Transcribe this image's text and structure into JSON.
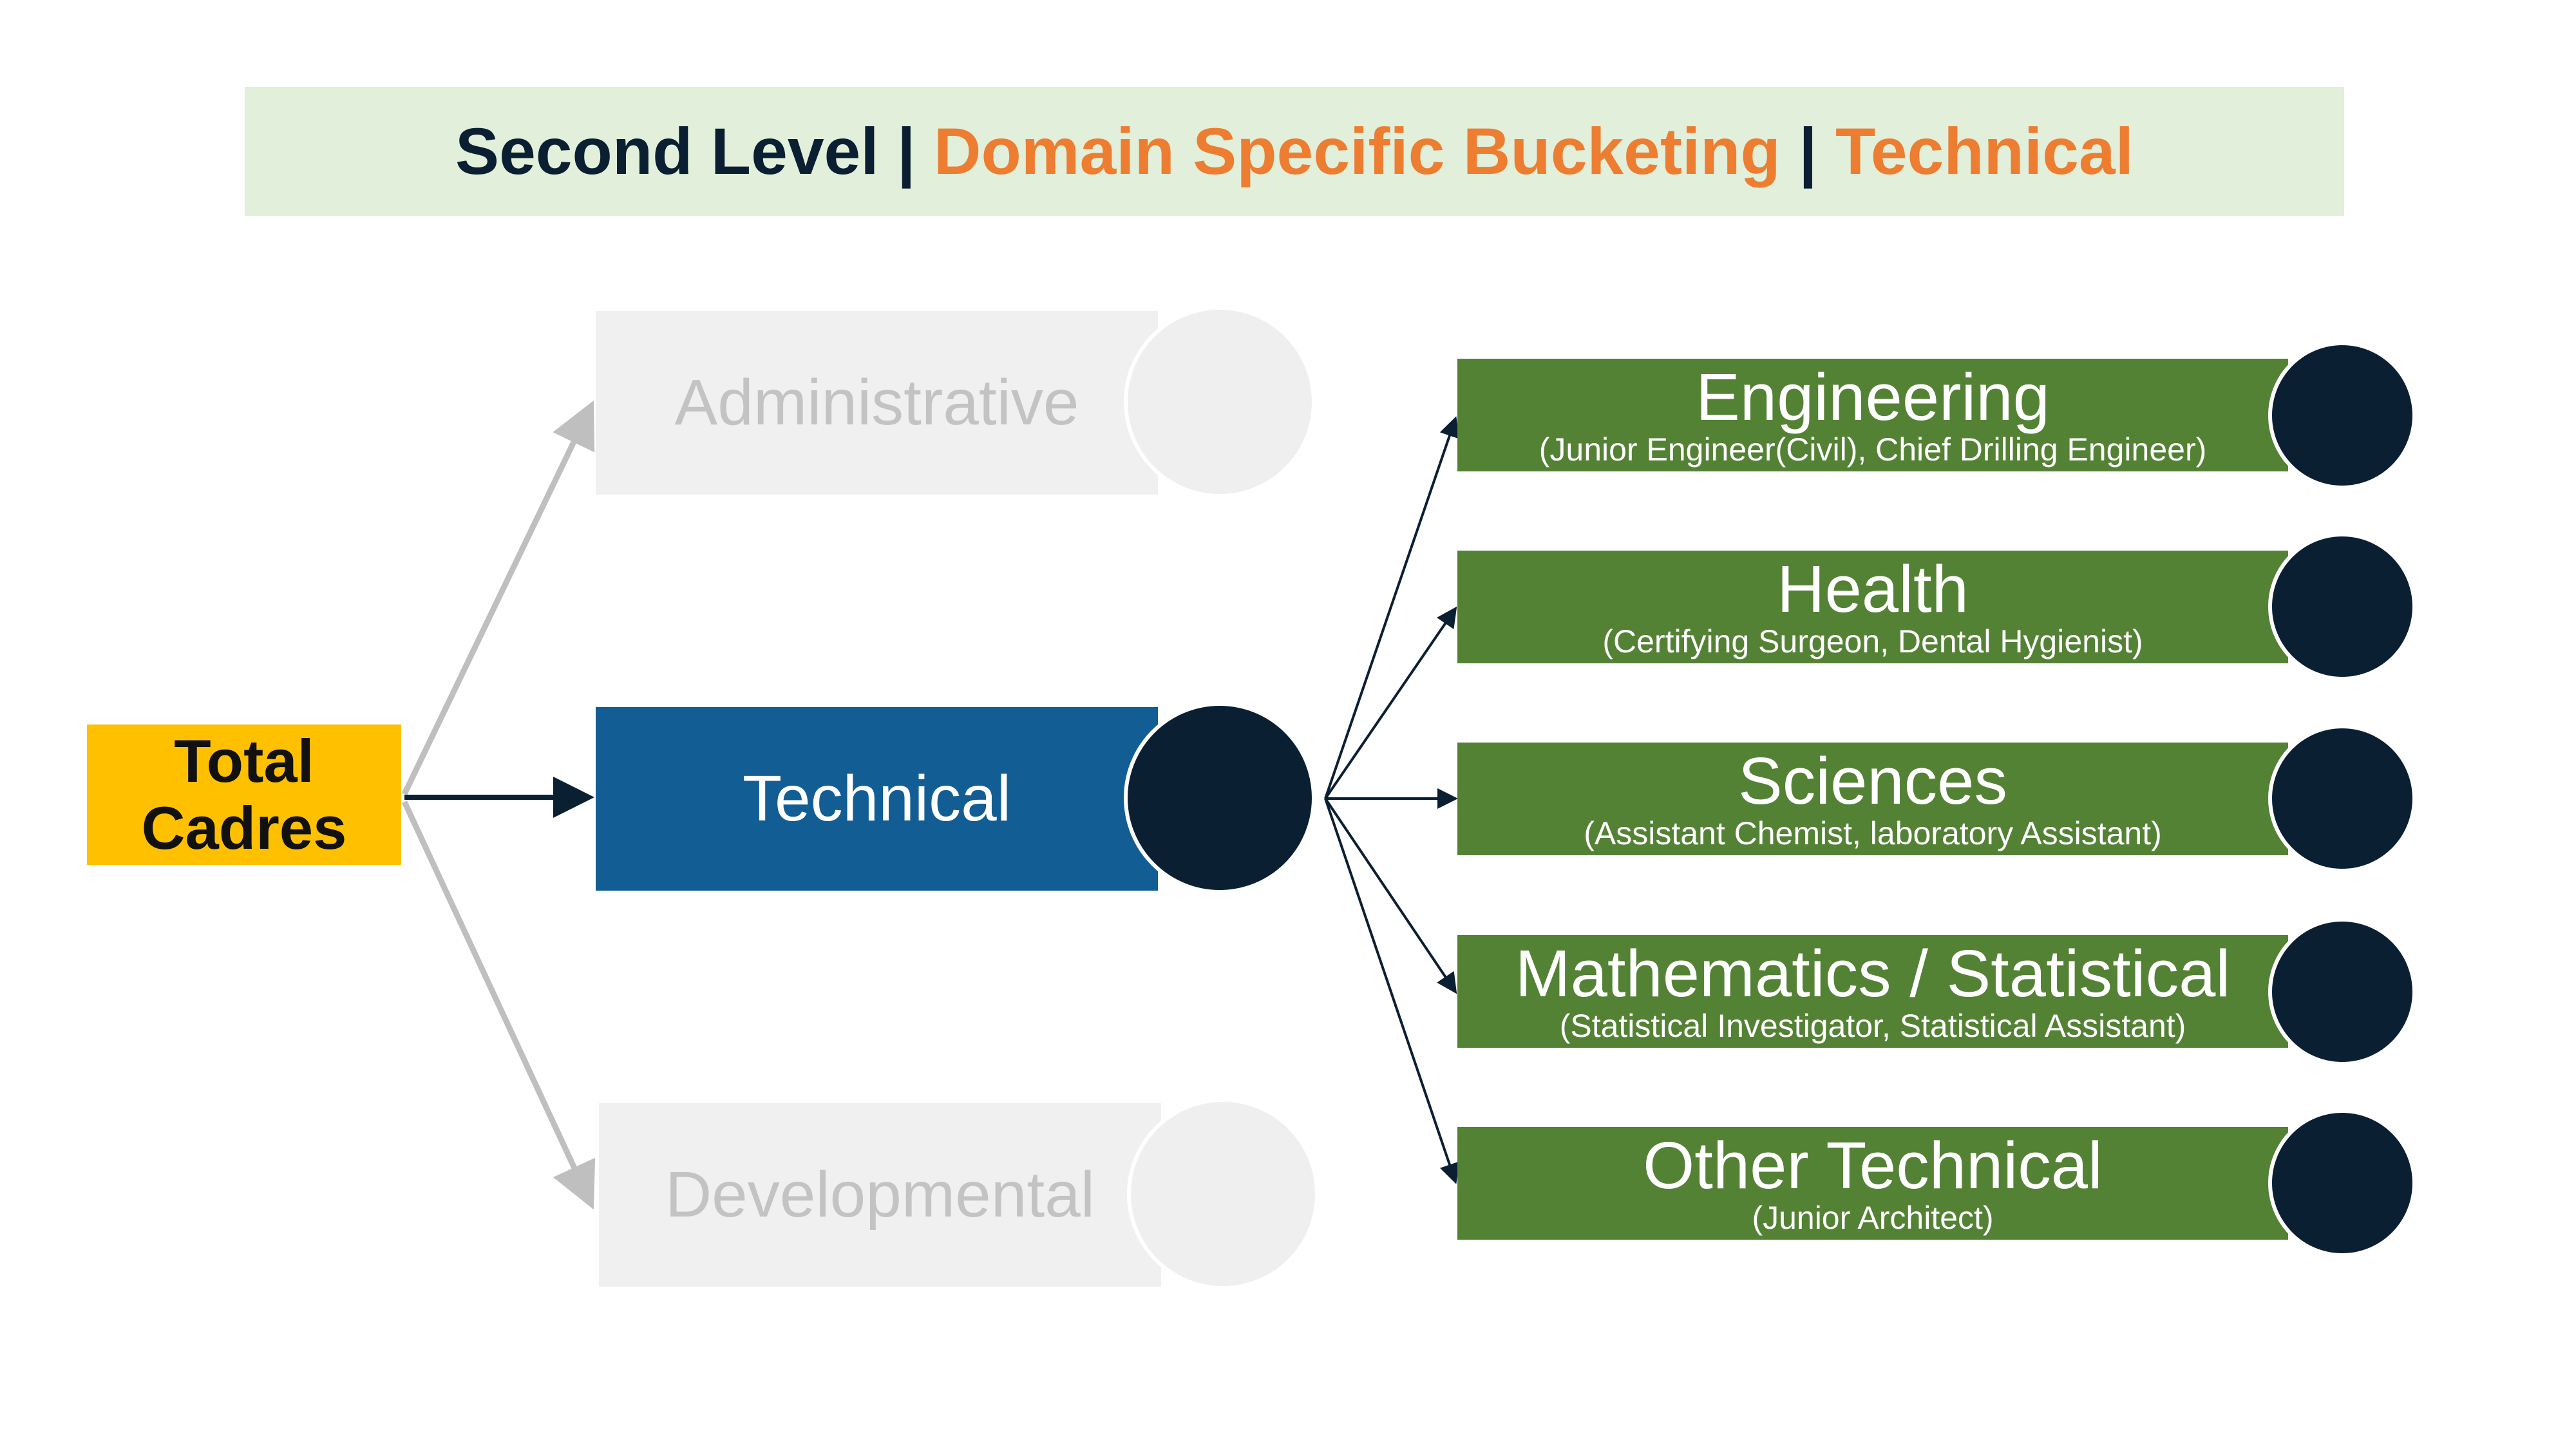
{
  "title": {
    "part1": "Second Level",
    "sep1": " | ",
    "part2": "Domain Specific Bucketing",
    "sep2": " | ",
    "part3": "Technical"
  },
  "root": {
    "line1": "Total",
    "line2": "Cadres"
  },
  "level1": {
    "administrative": "Administrative",
    "technical": "Technical",
    "developmental": "Developmental"
  },
  "categories": [
    {
      "title": "Engineering",
      "subtitle": "(Junior Engineer(Civil), Chief Drilling Engineer)"
    },
    {
      "title": "Health",
      "subtitle": "(Certifying Surgeon, Dental Hygienist)"
    },
    {
      "title": "Sciences",
      "subtitle": "(Assistant Chemist, laboratory Assistant)"
    },
    {
      "title": "Mathematics / Statistical",
      "subtitle": "(Statistical Investigator, Statistical Assistant)"
    },
    {
      "title": "Other Technical",
      "subtitle": "(Junior Architect)"
    }
  ],
  "colors": {
    "title_bg": "#e2efda",
    "title_dark": "#0b1f33",
    "title_accent": "#ed7d31",
    "root": "#ffc000",
    "technical": "#125d94",
    "faded": "#f0f0f0",
    "category": "#548235",
    "circle": "#0b1f33"
  }
}
